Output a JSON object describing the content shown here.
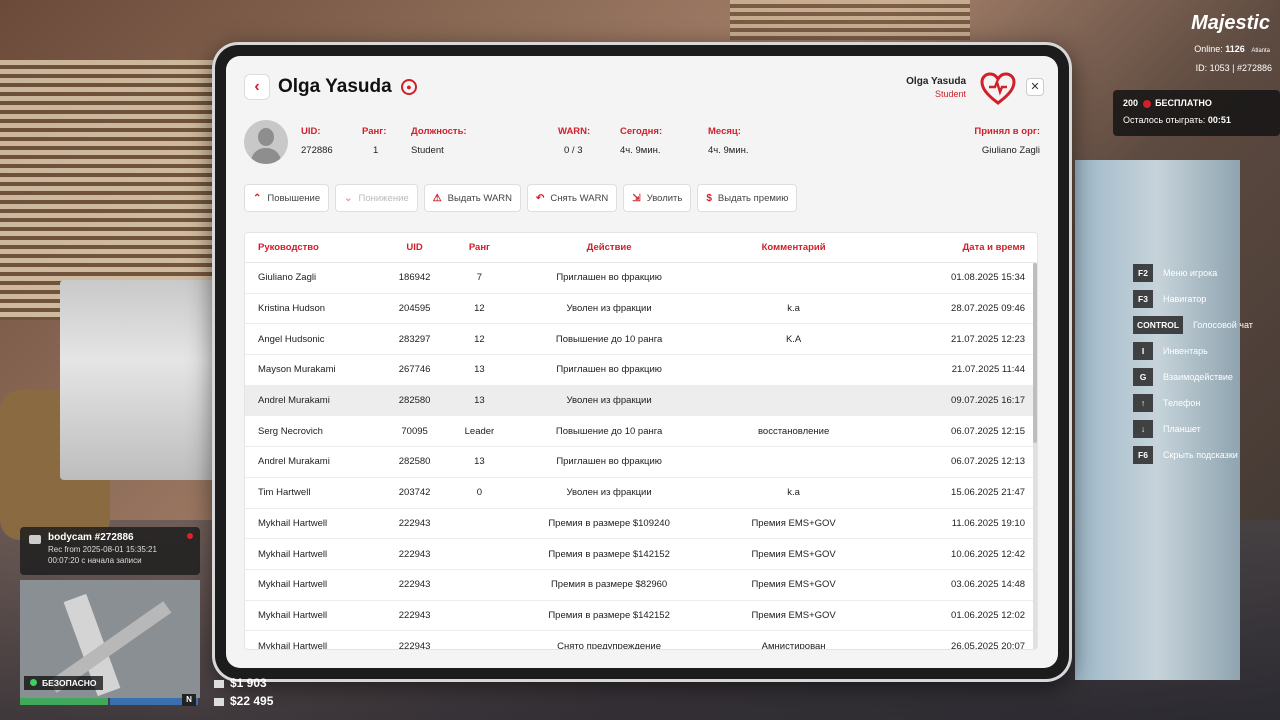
{
  "profile": {
    "name": "Olga Yasuda",
    "uid_label": "UID:",
    "uid": "272886",
    "rank_label": "Ранг:",
    "rank": "1",
    "position_label": "Должность:",
    "position": "Student",
    "warn_label": "WARN:",
    "warn": "0 / 3",
    "today_label": "Сегодня:",
    "today": "4ч. 9мин.",
    "month_label": "Месяц:",
    "month": "4ч. 9мин.",
    "accepted_label": "Принял в орг:",
    "accepted_by": "Giuliano Zagli"
  },
  "current_user": {
    "name": "Olga Yasuda",
    "role": "Student"
  },
  "actions": [
    {
      "label": "Повышение",
      "icon": "chevron-up-icon",
      "glyph": "⌃",
      "disabled": false
    },
    {
      "label": "Понижение",
      "icon": "chevron-down-icon",
      "glyph": "⌄",
      "disabled": true
    },
    {
      "label": "Выдать WARN",
      "icon": "warn-icon",
      "glyph": "⚠",
      "disabled": false
    },
    {
      "label": "Снять WARN",
      "icon": "undo-icon",
      "glyph": "↶",
      "disabled": false
    },
    {
      "label": "Уволить",
      "icon": "fire-icon",
      "glyph": "⇲",
      "disabled": false
    },
    {
      "label": "Выдать премию",
      "icon": "bonus-icon",
      "glyph": "$",
      "disabled": false
    }
  ],
  "table": {
    "headers": [
      "Руководство",
      "UID",
      "Ранг",
      "Действие",
      "Комментарий",
      "Дата и время"
    ],
    "rows": [
      [
        "Giuliano Zagli",
        "186942",
        "7",
        "Приглашен во фракцию",
        "",
        "01.08.2025 15:34"
      ],
      [
        "Kristina Hudson",
        "204595",
        "12",
        "Уволен из фракции",
        "k.a",
        "28.07.2025 09:46"
      ],
      [
        "Angel Hudsonic",
        "283297",
        "12",
        "Повышение до 10 ранга",
        "K.A",
        "21.07.2025 12:23"
      ],
      [
        "Mayson Murakami",
        "267746",
        "13",
        "Приглашен во фракцию",
        "",
        "21.07.2025 11:44"
      ],
      [
        "Andrel Murakami",
        "282580",
        "13",
        "Уволен из фракции",
        "",
        "09.07.2025 16:17"
      ],
      [
        "Serg Necrovich",
        "70095",
        "Leader",
        "Повышение до 10 ранга",
        "восстановление",
        "06.07.2025 12:15"
      ],
      [
        "Andrel Murakami",
        "282580",
        "13",
        "Приглашен во фракцию",
        "",
        "06.07.2025 12:13"
      ],
      [
        "Tim Hartwell",
        "203742",
        "0",
        "Уволен из фракции",
        "k.a",
        "15.06.2025 21:47"
      ],
      [
        "Mykhail Hartwell",
        "222943",
        "",
        "Премия в размере $109240",
        "Премия EMS+GOV",
        "11.06.2025 19:10"
      ],
      [
        "Mykhail Hartwell",
        "222943",
        "",
        "Премия в размере $142152",
        "Премия EMS+GOV",
        "10.06.2025 12:42"
      ],
      [
        "Mykhail Hartwell",
        "222943",
        "",
        "Премия в размере $82960",
        "Премия EMS+GOV",
        "03.06.2025 14:48"
      ],
      [
        "Mykhail Hartwell",
        "222943",
        "",
        "Премия в размере $142152",
        "Премия EMS+GOV",
        "01.06.2025 12:02"
      ],
      [
        "Mykhail Hartwell",
        "222943",
        "",
        "Снято предупреждение",
        "Амнистирован",
        "26.05.2025 20:07"
      ]
    ],
    "highlighted_row": 4
  },
  "hud": {
    "logo": "Majestic",
    "online_label": "Online:",
    "online": "1126",
    "server": "Atlanta",
    "id_text": "ID: 1053 | #272886",
    "promo_count": "200",
    "promo_title": "БЕСПЛАТНО",
    "promo_sub_label": "Осталось отыграть:",
    "promo_time": "00:51",
    "hints": [
      {
        "key": "F2",
        "label": "Меню игрока"
      },
      {
        "key": "F3",
        "label": "Навигатор"
      },
      {
        "key": "CONTROL",
        "label": "Голосовой чат"
      },
      {
        "key": "I",
        "label": "Инвентарь"
      },
      {
        "key": "G",
        "label": "Взаимодействие"
      },
      {
        "key": "↑",
        "label": "Телефон"
      },
      {
        "key": "↓",
        "label": "Планшет"
      },
      {
        "key": "F6",
        "label": "Скрыть подсказки"
      }
    ],
    "bodycam_title": "bodycam #272886",
    "bodycam_rec": "Rec from 2025-08-01 15:35:21",
    "bodycam_elapsed": "00:07:20 с начала записи",
    "zone": "БЕЗОПАСНО",
    "compass": "N",
    "cash": "$1 903",
    "bank": "$22 495"
  },
  "colors": {
    "accent": "#d0202a",
    "table_header": "#d0202a"
  }
}
